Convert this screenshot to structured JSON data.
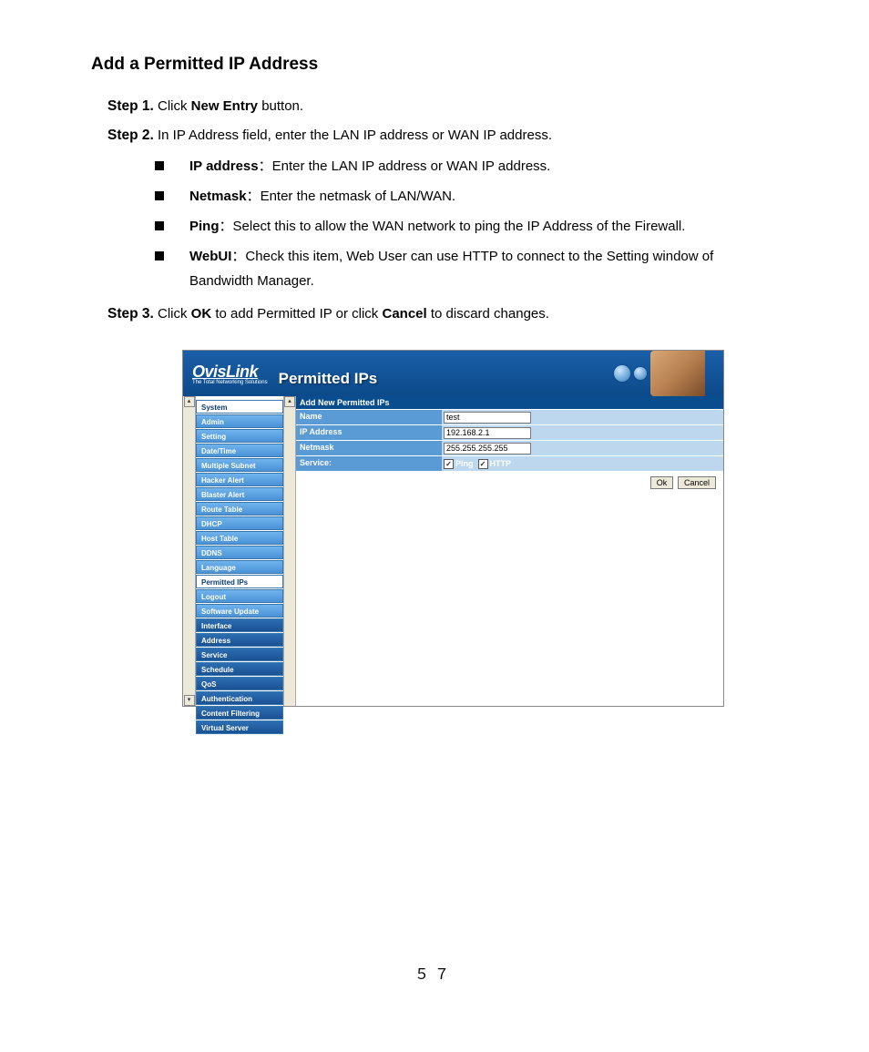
{
  "heading": "Add a Permitted IP Address",
  "steps": {
    "s1": {
      "label": "Step 1.",
      "pre": "Click ",
      "bold": "New Entry",
      "post": " button."
    },
    "s2": {
      "label": "Step 2.",
      "text": "In IP Address field, enter the LAN IP address or WAN IP address."
    },
    "s3": {
      "label": "Step 3.",
      "pre": "Click ",
      "b1": "OK",
      "mid": " to add Permitted IP or click ",
      "b2": "Cancel",
      "post": " to discard changes."
    }
  },
  "bullets": [
    {
      "term": "IP address",
      "sep": "：",
      "desc": "Enter the LAN IP address or WAN IP address."
    },
    {
      "term": "Netmask",
      "sep": "：",
      "desc": "Enter the netmask of LAN/WAN."
    },
    {
      "term": "Ping",
      "sep": "：",
      "desc": "Select this to allow the WAN network to ping the IP Address of the Firewall."
    },
    {
      "term": "WebUI",
      "sep": "：",
      "desc": "Check this item, Web User can use HTTP to connect to the Setting window of Bandwidth Manager."
    }
  ],
  "screenshot": {
    "brand_main": "OvisLink",
    "brand_sub": "The Total Networking Solutions",
    "banner_title": "Permitted IPs",
    "form_title": "Add New Permitted IPs",
    "rows": {
      "name": {
        "label": "Name",
        "value": "test"
      },
      "ip": {
        "label": "IP Address",
        "value": "192.168.2.1"
      },
      "netmask": {
        "label": "Netmask",
        "value": "255.255.255.255"
      },
      "service": {
        "label": "Service:",
        "chk1": "Ping",
        "chk2": "HTTP"
      }
    },
    "buttons": {
      "ok": "Ok",
      "cancel": "Cancel"
    },
    "nav": {
      "head": "System",
      "system_children": [
        "Admin",
        "Setting",
        "Date/Time",
        "Multiple Subnet",
        "Hacker Alert",
        "Blaster Alert",
        "Route Table",
        "DHCP",
        "Host Table",
        "DDNS",
        "Language",
        "Permitted IPs",
        "Logout",
        "Software Update"
      ],
      "lower": [
        "Interface",
        "Address",
        "Service",
        "Schedule",
        "QoS",
        "Authentication",
        "Content Filtering",
        "Virtual Server"
      ]
    },
    "colors": {
      "banner_from": "#1a5fa8",
      "banner_to": "#0c4a8a",
      "form_title_bg": "#0a4d8f",
      "label_bg": "#5b9bd5",
      "field_bg": "#bdd7ee",
      "nav_child_from": "#6fb3ec",
      "nav_child_to": "#4a93d6",
      "nav_lower_from": "#2c6db1",
      "nav_lower_to": "#1a5294"
    }
  },
  "page_number": "５７"
}
